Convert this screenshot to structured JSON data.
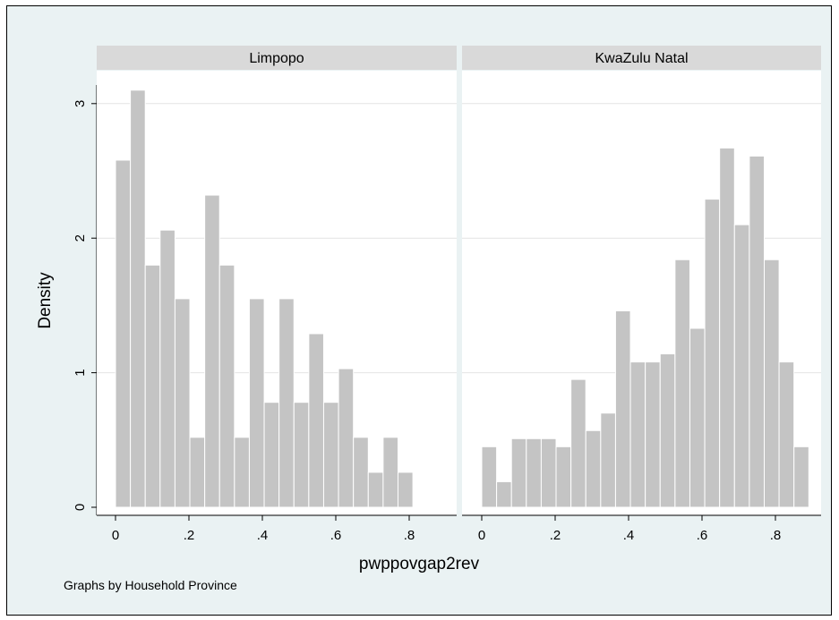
{
  "chart_data": {
    "type": "bar",
    "subtype": "histogram",
    "xlabel": "pwppovgap2rev",
    "ylabel": "Density",
    "note": "Graphs by Household Province",
    "xlim": [
      0,
      0.85
    ],
    "ylim": [
      0,
      3.2
    ],
    "x_ticks": [
      0,
      0.2,
      0.4,
      0.6,
      0.8
    ],
    "x_tick_labels": [
      "0",
      ".2",
      ".4",
      ".6",
      ".8"
    ],
    "y_ticks": [
      0,
      1,
      2,
      3
    ],
    "y_tick_labels": [
      "0",
      "1",
      "2",
      "3"
    ],
    "grid": true,
    "bar_color": "#c4c4c4",
    "bar_edge_color": "#ffffff",
    "background_color": "#eaf2f3",
    "panel_color": "#ffffff",
    "header_color": "#d9d9d9",
    "panels": [
      {
        "name": "Limpopo",
        "bin_width": 0.0405,
        "bin_start": 0,
        "densities": [
          2.58,
          3.1,
          1.8,
          2.06,
          1.55,
          0.52,
          2.32,
          1.8,
          0.52,
          1.55,
          0.78,
          1.55,
          0.78,
          1.29,
          0.78,
          1.03,
          0.52,
          0.26,
          0.52,
          0.26
        ]
      },
      {
        "name": "KwaZulu Natal",
        "bin_width": 0.0405,
        "bin_start": 0,
        "densities": [
          0.45,
          0.19,
          0.51,
          0.51,
          0.51,
          0.45,
          0.95,
          0.57,
          0.7,
          1.46,
          1.08,
          1.08,
          1.14,
          1.84,
          1.33,
          2.29,
          2.67,
          2.1,
          2.61,
          1.84,
          1.08,
          0.45
        ]
      }
    ]
  }
}
